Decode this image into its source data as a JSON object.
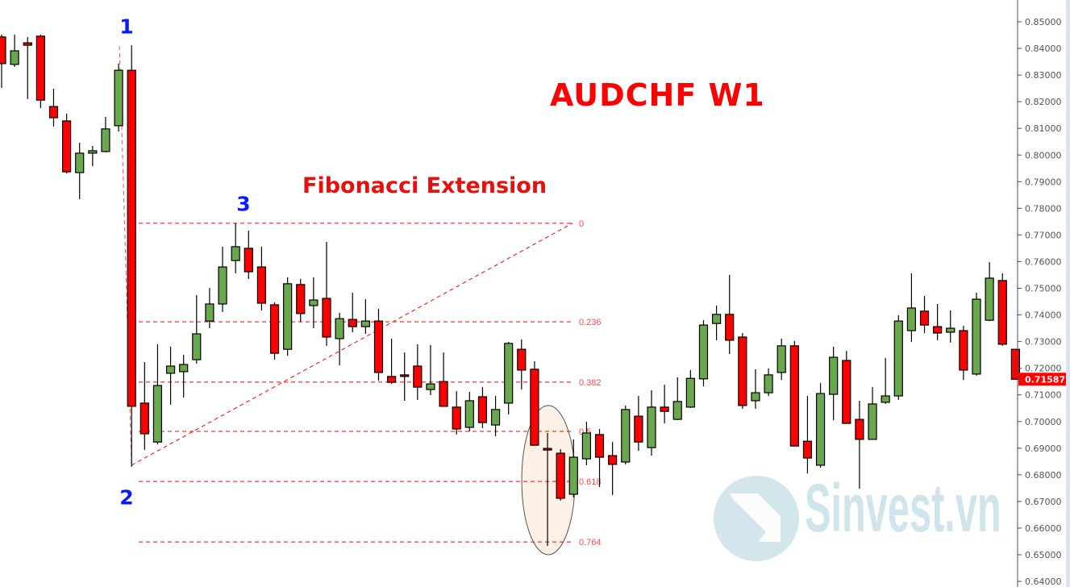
{
  "title": "AUDCHF W1",
  "annotation": "Fibonacci Extension",
  "point_labels": [
    "1",
    "2",
    "3"
  ],
  "watermark": "Sinvest.vn",
  "colors": {
    "bull": "#6aa84f",
    "bear": "#ff0000",
    "fib": "#ff0000",
    "fib_label": "#ff4a4a",
    "highlight_fill": "#fdf0e4",
    "last_price_badge": "#ff0000",
    "watermark": "#cfe5eb"
  },
  "chart_data": {
    "type": "candlestick",
    "symbol": "AUDCHF",
    "timeframe": "W1",
    "ylim": [
      0.64,
      0.855
    ],
    "yticks": [
      "0.85000",
      "0.84000",
      "0.83000",
      "0.82000",
      "0.81000",
      "0.80000",
      "0.79000",
      "0.78000",
      "0.77000",
      "0.76000",
      "0.75000",
      "0.74000",
      "0.73000",
      "0.72000",
      "0.71000",
      "0.70000",
      "0.69000",
      "0.68000",
      "0.67000",
      "0.66000",
      "0.65000",
      "0.64000"
    ],
    "last_price": "0.71587",
    "ohlc_fields": [
      "open",
      "high",
      "low",
      "close"
    ],
    "candles": [
      [
        0.8443,
        0.8452,
        0.8252,
        0.8343
      ],
      [
        0.834,
        0.8452,
        0.8331,
        0.8391
      ],
      [
        0.8421,
        0.8443,
        0.821,
        0.8412
      ],
      [
        0.8446,
        0.8452,
        0.8176,
        0.8206
      ],
      [
        0.8182,
        0.8249,
        0.8107,
        0.814
      ],
      [
        0.8128,
        0.8155,
        0.7931,
        0.7937
      ],
      [
        0.7934,
        0.8046,
        0.7834,
        0.8007
      ],
      [
        0.8007,
        0.8034,
        0.7958,
        0.8016
      ],
      [
        0.8013,
        0.8143,
        0.801,
        0.8098
      ],
      [
        0.811,
        0.8343,
        0.8088,
        0.8318
      ],
      [
        0.8318,
        0.8412,
        0.683,
        0.7057
      ],
      [
        0.7069,
        0.7223,
        0.6893,
        0.6954
      ],
      [
        0.6923,
        0.729,
        0.6914,
        0.7135
      ],
      [
        0.7181,
        0.7281,
        0.7063,
        0.7208
      ],
      [
        0.7187,
        0.725,
        0.709,
        0.7214
      ],
      [
        0.7232,
        0.7474,
        0.7217,
        0.7329
      ],
      [
        0.7377,
        0.7501,
        0.735,
        0.7441
      ],
      [
        0.7441,
        0.7656,
        0.7411,
        0.758
      ],
      [
        0.7604,
        0.7744,
        0.7556,
        0.7656
      ],
      [
        0.765,
        0.7716,
        0.7535,
        0.7562
      ],
      [
        0.758,
        0.7656,
        0.7417,
        0.7444
      ],
      [
        0.7438,
        0.7447,
        0.7232,
        0.7256
      ],
      [
        0.7271,
        0.7541,
        0.7247,
        0.7517
      ],
      [
        0.7514,
        0.7535,
        0.7374,
        0.7405
      ],
      [
        0.7435,
        0.7541,
        0.735,
        0.7456
      ],
      [
        0.7462,
        0.7674,
        0.7284,
        0.7317
      ],
      [
        0.7311,
        0.7408,
        0.7211,
        0.7386
      ],
      [
        0.7383,
        0.7483,
        0.7335,
        0.7356
      ],
      [
        0.7356,
        0.7459,
        0.7329,
        0.7377
      ],
      [
        0.7377,
        0.7423,
        0.7153,
        0.7184
      ],
      [
        0.7169,
        0.7311,
        0.7141,
        0.7147
      ],
      [
        0.7175,
        0.7259,
        0.7078,
        0.7169
      ],
      [
        0.7208,
        0.729,
        0.7081,
        0.7129
      ],
      [
        0.712,
        0.7287,
        0.7099,
        0.7141
      ],
      [
        0.715,
        0.7259,
        0.7057,
        0.7057
      ],
      [
        0.7054,
        0.7114,
        0.6951,
        0.6972
      ],
      [
        0.6978,
        0.7111,
        0.6963,
        0.7078
      ],
      [
        0.7093,
        0.7129,
        0.6975,
        0.6996
      ],
      [
        0.6987,
        0.7096,
        0.6945,
        0.7045
      ],
      [
        0.7069,
        0.7299,
        0.7026,
        0.7293
      ],
      [
        0.7271,
        0.7308,
        0.712,
        0.7193
      ],
      [
        0.7196,
        0.7226,
        0.6911,
        0.6911
      ],
      [
        0.6899,
        0.6957,
        0.6533,
        0.6893
      ],
      [
        0.6881,
        0.6896,
        0.6703,
        0.6712
      ],
      [
        0.6727,
        0.6933,
        0.6715,
        0.6866
      ],
      [
        0.686,
        0.6999,
        0.6836,
        0.6957
      ],
      [
        0.6951,
        0.6972,
        0.6754,
        0.6866
      ],
      [
        0.6872,
        0.6923,
        0.6724,
        0.6839
      ],
      [
        0.6848,
        0.706,
        0.6839,
        0.7045
      ],
      [
        0.702,
        0.7096,
        0.689,
        0.6923
      ],
      [
        0.6902,
        0.7117,
        0.6872,
        0.7054
      ],
      [
        0.7054,
        0.7138,
        0.6993,
        0.7038
      ],
      [
        0.7008,
        0.7166,
        0.7005,
        0.7075
      ],
      [
        0.7054,
        0.7193,
        0.7051,
        0.7162
      ],
      [
        0.716,
        0.738,
        0.7132,
        0.7362
      ],
      [
        0.7368,
        0.7435,
        0.7305,
        0.7402
      ],
      [
        0.7402,
        0.755,
        0.7253,
        0.7305
      ],
      [
        0.7317,
        0.7332,
        0.7048,
        0.706
      ],
      [
        0.7078,
        0.7196,
        0.7048,
        0.7108
      ],
      [
        0.7108,
        0.7199,
        0.7096,
        0.7175
      ],
      [
        0.7184,
        0.7311,
        0.7156,
        0.7284
      ],
      [
        0.7284,
        0.7302,
        0.6908,
        0.6908
      ],
      [
        0.6926,
        0.7096,
        0.6805,
        0.6863
      ],
      [
        0.6836,
        0.7144,
        0.6827,
        0.7105
      ],
      [
        0.7102,
        0.7281,
        0.7005,
        0.7241
      ],
      [
        0.7229,
        0.7265,
        0.6993,
        0.6993
      ],
      [
        0.7008,
        0.7078,
        0.6748,
        0.6933
      ],
      [
        0.6933,
        0.7129,
        0.6933,
        0.7066
      ],
      [
        0.7072,
        0.7238,
        0.7066,
        0.7096
      ],
      [
        0.7096,
        0.7399,
        0.7081,
        0.7377
      ],
      [
        0.7341,
        0.7556,
        0.7299,
        0.7426
      ],
      [
        0.7414,
        0.7471,
        0.7332,
        0.7362
      ],
      [
        0.7356,
        0.7441,
        0.7305,
        0.7332
      ],
      [
        0.7335,
        0.7417,
        0.7296,
        0.735
      ],
      [
        0.7341,
        0.7359,
        0.7156,
        0.7193
      ],
      [
        0.7178,
        0.7483,
        0.7172,
        0.7459
      ],
      [
        0.738,
        0.7598,
        0.7377,
        0.7538
      ],
      [
        0.7529,
        0.7556,
        0.7284,
        0.729
      ],
      [
        0.7271,
        0.7271,
        0.71587,
        0.71587
      ]
    ],
    "fibonacci_extension": {
      "point1": 0.8412,
      "point2": 0.683,
      "point3": 0.7744,
      "levels": [
        {
          "label": "0",
          "price": 0.7744
        },
        {
          "label": "0.236",
          "price": 0.7374
        },
        {
          "label": "0.382",
          "price": 0.7148
        },
        {
          "label": "0.5",
          "price": 0.6963
        },
        {
          "label": "0.618",
          "price": 0.6775
        },
        {
          "label": "0.764",
          "price": 0.6548
        }
      ]
    },
    "highlight": {
      "shape": "ellipse",
      "price_range": [
        0.65,
        0.706
      ]
    }
  }
}
